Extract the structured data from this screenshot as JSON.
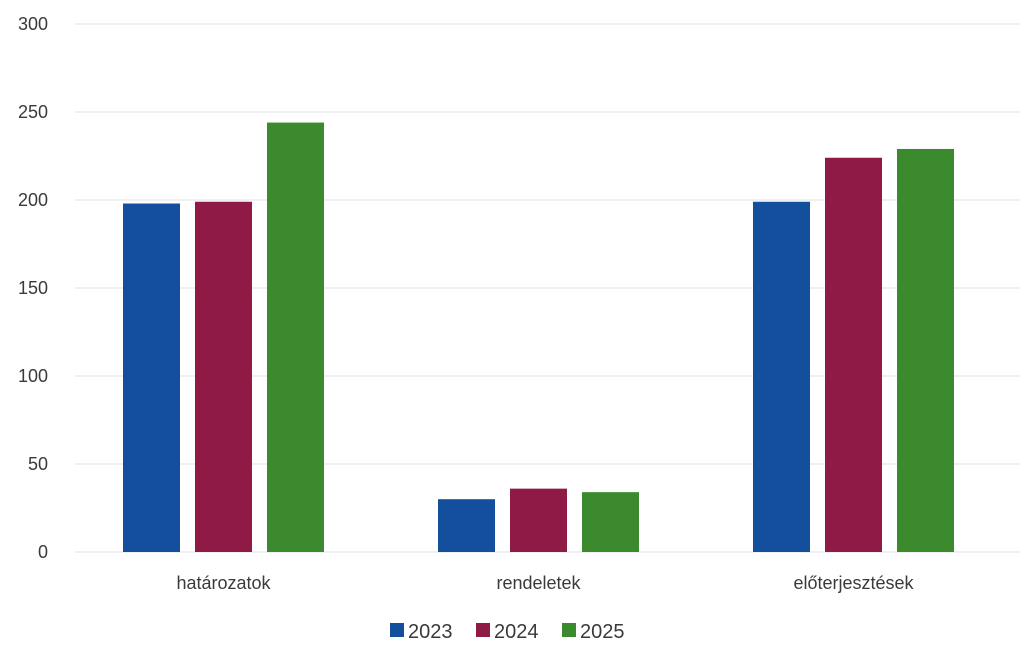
{
  "chart_data": {
    "type": "bar",
    "title": "",
    "xlabel": "",
    "ylabel": "",
    "categories": [
      "határozatok",
      "rendeletek",
      "előterjesztések"
    ],
    "series": [
      {
        "name": "2023",
        "color": "#134f9c",
        "values": [
          198,
          30,
          199
        ]
      },
      {
        "name": "2024",
        "color": "#8e1a45",
        "values": [
          199,
          36,
          224
        ]
      },
      {
        "name": "2025",
        "color": "#3b8a2e",
        "values": [
          244,
          34,
          229
        ]
      }
    ],
    "ylim": [
      0,
      300
    ],
    "yticks": [
      "0",
      "50",
      "100",
      "150",
      "200",
      "250",
      "300"
    ],
    "grid": true,
    "legend_position": "bottom"
  }
}
